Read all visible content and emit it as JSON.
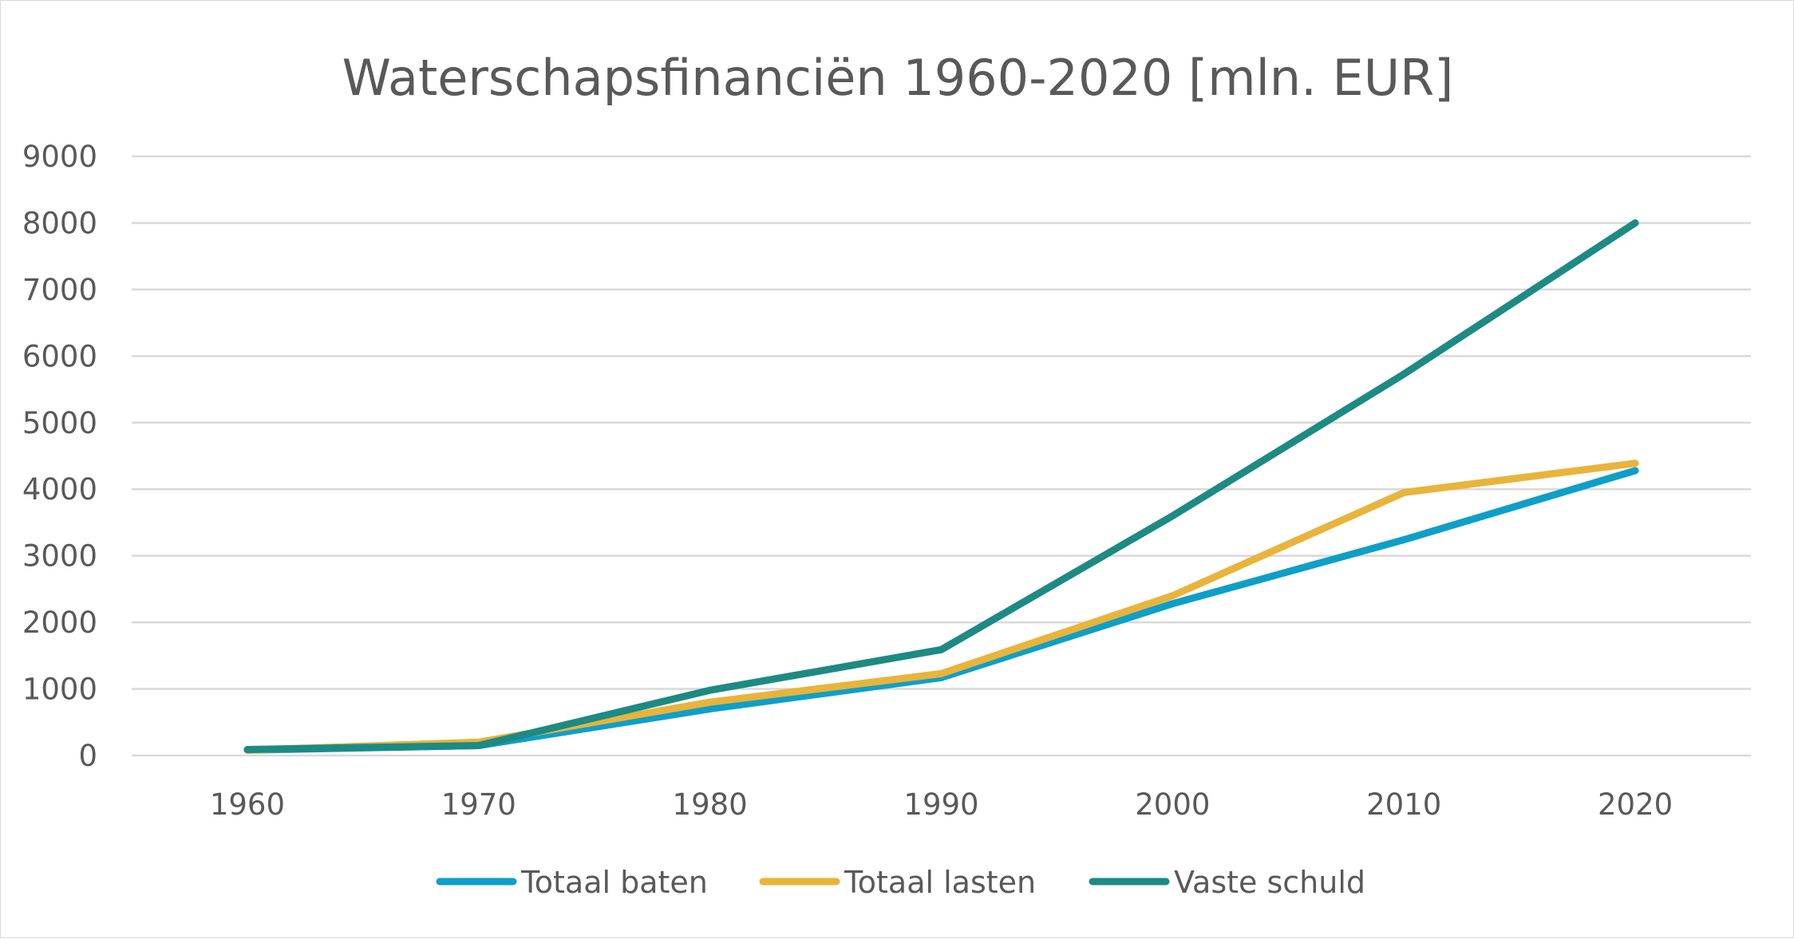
{
  "chart_data": {
    "type": "line",
    "title": "Waterschapsfinanciën 1960-2020 [mln. EUR]",
    "xlabel": "",
    "ylabel": "",
    "categories": [
      "1960",
      "1970",
      "1980",
      "1990",
      "2000",
      "2010",
      "2020"
    ],
    "series": [
      {
        "name": "Totaal baten",
        "color": "#0e9fc9",
        "values": [
          80,
          150,
          700,
          1170,
          2280,
          3240,
          4280
        ]
      },
      {
        "name": "Totaal lasten",
        "color": "#e8b43b",
        "values": [
          80,
          200,
          800,
          1230,
          2400,
          3950,
          4390
        ]
      },
      {
        "name": "Vaste schuld",
        "color": "#1d8a84",
        "values": [
          90,
          150,
          980,
          1590,
          3600,
          5730,
          8000
        ]
      }
    ],
    "y_ticks": [
      "0",
      "1000",
      "2000",
      "3000",
      "4000",
      "5000",
      "6000",
      "7000",
      "8000",
      "9000"
    ],
    "ylim": [
      0,
      9000
    ],
    "grid": true,
    "legend_position": "bottom"
  }
}
